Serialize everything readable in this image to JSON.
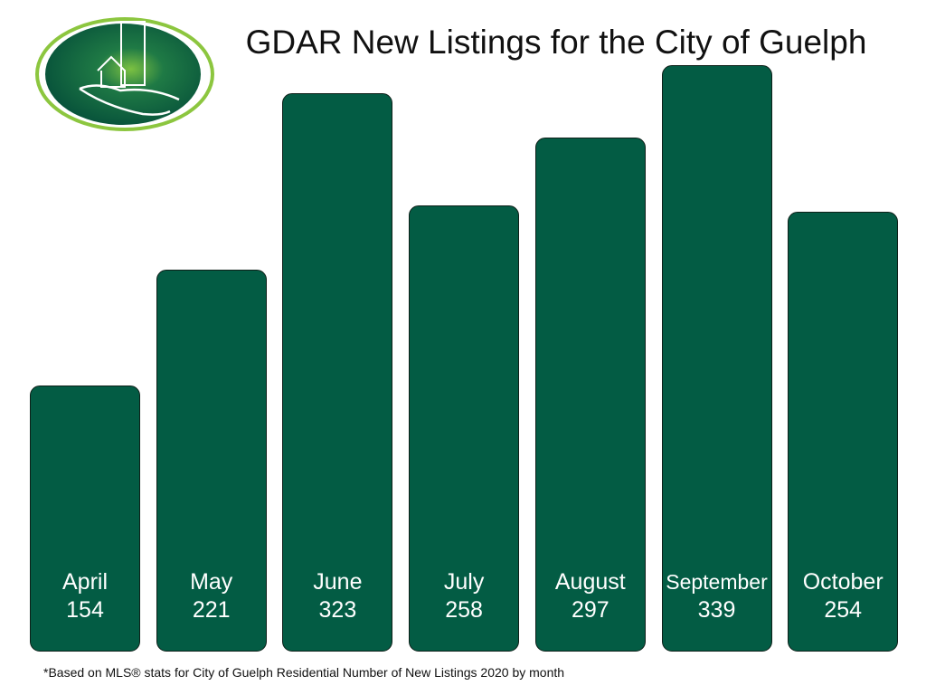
{
  "chart_data": {
    "type": "bar",
    "title": "GDAR New Listings for the City of Guelph",
    "categories": [
      "April",
      "May",
      "June",
      "July",
      "August",
      "September",
      "October"
    ],
    "values": [
      154,
      221,
      323,
      258,
      297,
      339,
      254
    ],
    "xlabel": "",
    "ylabel": "",
    "ylim": [
      0,
      340
    ],
    "grid": false,
    "bar_color": "#035c44",
    "footnote": "*Based on MLS® stats for City of Guelph Residential Number of New Listings 2020 by month"
  }
}
